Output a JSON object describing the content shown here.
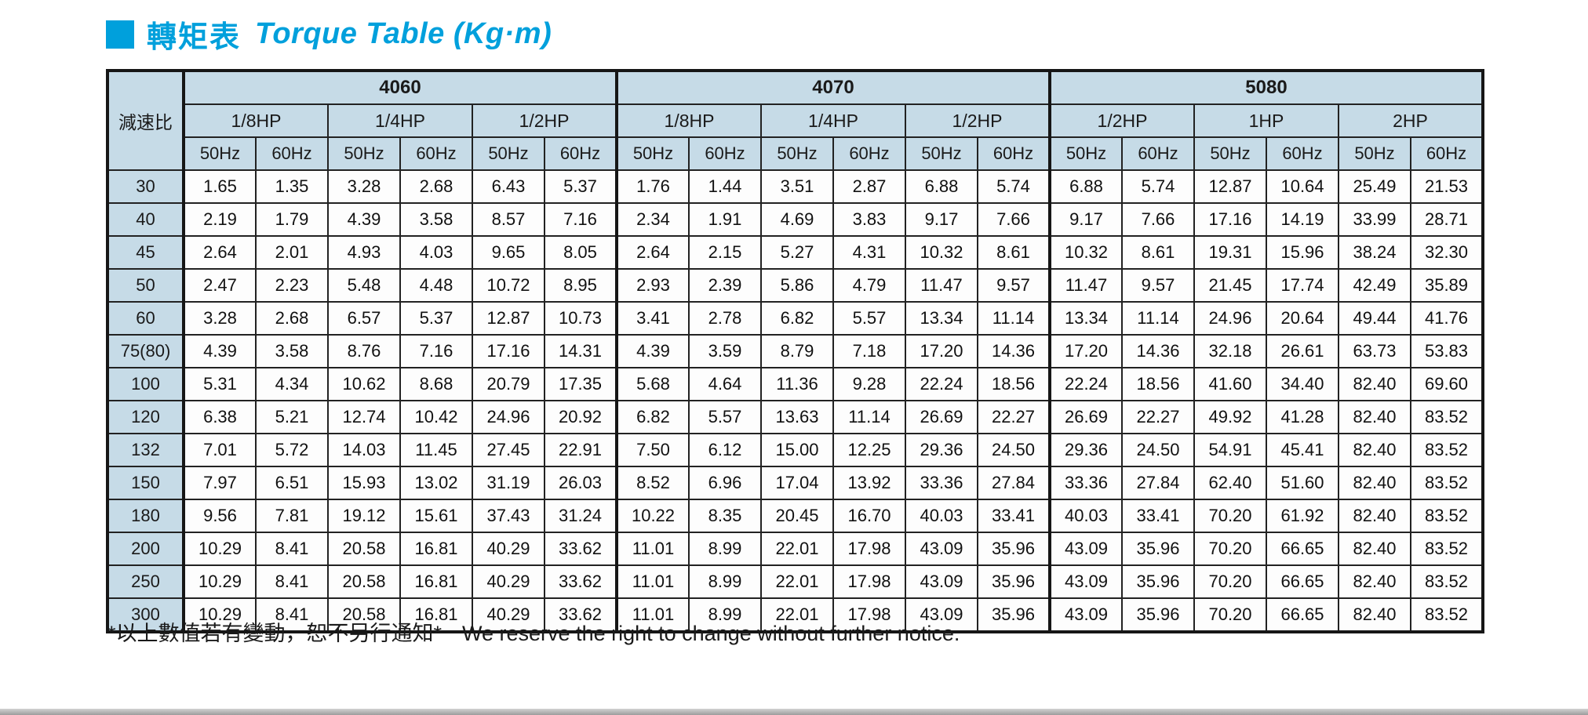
{
  "title": {
    "zh": "轉矩表",
    "en": "Torque Table (Kg·m)"
  },
  "colors": {
    "accent": "#00A0DC",
    "header_bg": "#C6DBE7"
  },
  "table": {
    "row_header_label": "減速比",
    "freq_labels": [
      "50Hz",
      "60Hz"
    ],
    "groups": [
      {
        "model": "4060",
        "hp": [
          "1/8HP",
          "1/4HP",
          "1/2HP"
        ]
      },
      {
        "model": "4070",
        "hp": [
          "1/8HP",
          "1/4HP",
          "1/2HP"
        ]
      },
      {
        "model": "5080",
        "hp": [
          "1/2HP",
          "1HP",
          "2HP"
        ]
      }
    ],
    "rows": [
      {
        "ratio": "30",
        "values": [
          "1.65",
          "1.35",
          "3.28",
          "2.68",
          "6.43",
          "5.37",
          "1.76",
          "1.44",
          "3.51",
          "2.87",
          "6.88",
          "5.74",
          "6.88",
          "5.74",
          "12.87",
          "10.64",
          "25.49",
          "21.53"
        ]
      },
      {
        "ratio": "40",
        "values": [
          "2.19",
          "1.79",
          "4.39",
          "3.58",
          "8.57",
          "7.16",
          "2.34",
          "1.91",
          "4.69",
          "3.83",
          "9.17",
          "7.66",
          "9.17",
          "7.66",
          "17.16",
          "14.19",
          "33.99",
          "28.71"
        ]
      },
      {
        "ratio": "45",
        "values": [
          "2.64",
          "2.01",
          "4.93",
          "4.03",
          "9.65",
          "8.05",
          "2.64",
          "2.15",
          "5.27",
          "4.31",
          "10.32",
          "8.61",
          "10.32",
          "8.61",
          "19.31",
          "15.96",
          "38.24",
          "32.30"
        ]
      },
      {
        "ratio": "50",
        "values": [
          "2.47",
          "2.23",
          "5.48",
          "4.48",
          "10.72",
          "8.95",
          "2.93",
          "2.39",
          "5.86",
          "4.79",
          "11.47",
          "9.57",
          "11.47",
          "9.57",
          "21.45",
          "17.74",
          "42.49",
          "35.89"
        ]
      },
      {
        "ratio": "60",
        "values": [
          "3.28",
          "2.68",
          "6.57",
          "5.37",
          "12.87",
          "10.73",
          "3.41",
          "2.78",
          "6.82",
          "5.57",
          "13.34",
          "11.14",
          "13.34",
          "11.14",
          "24.96",
          "20.64",
          "49.44",
          "41.76"
        ]
      },
      {
        "ratio": "75(80)",
        "values": [
          "4.39",
          "3.58",
          "8.76",
          "7.16",
          "17.16",
          "14.31",
          "4.39",
          "3.59",
          "8.79",
          "7.18",
          "17.20",
          "14.36",
          "17.20",
          "14.36",
          "32.18",
          "26.61",
          "63.73",
          "53.83"
        ]
      },
      {
        "ratio": "100",
        "values": [
          "5.31",
          "4.34",
          "10.62",
          "8.68",
          "20.79",
          "17.35",
          "5.68",
          "4.64",
          "11.36",
          "9.28",
          "22.24",
          "18.56",
          "22.24",
          "18.56",
          "41.60",
          "34.40",
          "82.40",
          "69.60"
        ]
      },
      {
        "ratio": "120",
        "values": [
          "6.38",
          "5.21",
          "12.74",
          "10.42",
          "24.96",
          "20.92",
          "6.82",
          "5.57",
          "13.63",
          "11.14",
          "26.69",
          "22.27",
          "26.69",
          "22.27",
          "49.92",
          "41.28",
          "82.40",
          "83.52"
        ]
      },
      {
        "ratio": "132",
        "values": [
          "7.01",
          "5.72",
          "14.03",
          "11.45",
          "27.45",
          "22.91",
          "7.50",
          "6.12",
          "15.00",
          "12.25",
          "29.36",
          "24.50",
          "29.36",
          "24.50",
          "54.91",
          "45.41",
          "82.40",
          "83.52"
        ]
      },
      {
        "ratio": "150",
        "values": [
          "7.97",
          "6.51",
          "15.93",
          "13.02",
          "31.19",
          "26.03",
          "8.52",
          "6.96",
          "17.04",
          "13.92",
          "33.36",
          "27.84",
          "33.36",
          "27.84",
          "62.40",
          "51.60",
          "82.40",
          "83.52"
        ]
      },
      {
        "ratio": "180",
        "values": [
          "9.56",
          "7.81",
          "19.12",
          "15.61",
          "37.43",
          "31.24",
          "10.22",
          "8.35",
          "20.45",
          "16.70",
          "40.03",
          "33.41",
          "40.03",
          "33.41",
          "70.20",
          "61.92",
          "82.40",
          "83.52"
        ]
      },
      {
        "ratio": "200",
        "values": [
          "10.29",
          "8.41",
          "20.58",
          "16.81",
          "40.29",
          "33.62",
          "11.01",
          "8.99",
          "22.01",
          "17.98",
          "43.09",
          "35.96",
          "43.09",
          "35.96",
          "70.20",
          "66.65",
          "82.40",
          "83.52"
        ]
      },
      {
        "ratio": "250",
        "values": [
          "10.29",
          "8.41",
          "20.58",
          "16.81",
          "40.29",
          "33.62",
          "11.01",
          "8.99",
          "22.01",
          "17.98",
          "43.09",
          "35.96",
          "43.09",
          "35.96",
          "70.20",
          "66.65",
          "82.40",
          "83.52"
        ]
      },
      {
        "ratio": "300",
        "values": [
          "10.29",
          "8.41",
          "20.58",
          "16.81",
          "40.29",
          "33.62",
          "11.01",
          "8.99",
          "22.01",
          "17.98",
          "43.09",
          "35.96",
          "43.09",
          "35.96",
          "70.20",
          "66.65",
          "82.40",
          "83.52"
        ]
      }
    ]
  },
  "footer": {
    "note_zh": "*以上數值若有變動，恕不另行通知*",
    "note_en": "We reserve the right to change without further notice."
  }
}
